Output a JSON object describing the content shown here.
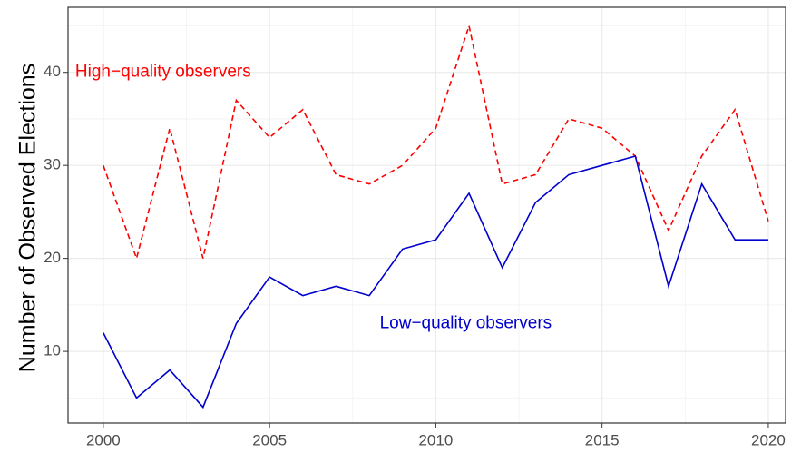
{
  "chart_data": {
    "type": "line",
    "y_label": "Number of Observed Elections",
    "x": [
      2000,
      2001,
      2002,
      2003,
      2004,
      2005,
      2006,
      2007,
      2008,
      2009,
      2010,
      2011,
      2012,
      2013,
      2014,
      2015,
      2016,
      2017,
      2018,
      2019,
      2020
    ],
    "series": [
      {
        "name": "High−quality observers",
        "color": "#ff0000",
        "dash": "dashed",
        "values": [
          30,
          20,
          34,
          20,
          37,
          33,
          36,
          29,
          28,
          30,
          34,
          45,
          28,
          29,
          35,
          34,
          31,
          23,
          31,
          36,
          24
        ]
      },
      {
        "name": "Low−quality observers",
        "color": "#0000cd",
        "dash": "solid",
        "values": [
          12,
          5,
          8,
          4,
          13,
          18,
          16,
          17,
          16,
          21,
          22,
          27,
          19,
          26,
          29,
          30,
          31,
          17,
          28,
          22,
          22
        ]
      }
    ],
    "annotations": [
      {
        "text": "High−quality observers",
        "x": 2001.8,
        "y": 40,
        "color": "#ff0000"
      },
      {
        "text": "Low−quality observers",
        "x": 2010.9,
        "y": 13,
        "color": "#0000cd"
      }
    ],
    "xlim": [
      1998.94,
      2020.52
    ],
    "xticks": [
      2000,
      2005,
      2010,
      2015,
      2020
    ],
    "xminor": [
      2002.5,
      2007.5,
      2012.5,
      2017.5
    ],
    "ylim": [
      2.3,
      47
    ],
    "yticks": [
      10,
      20,
      30,
      40
    ],
    "yminor": [
      5,
      15,
      25,
      35,
      45
    ],
    "grid": true
  }
}
